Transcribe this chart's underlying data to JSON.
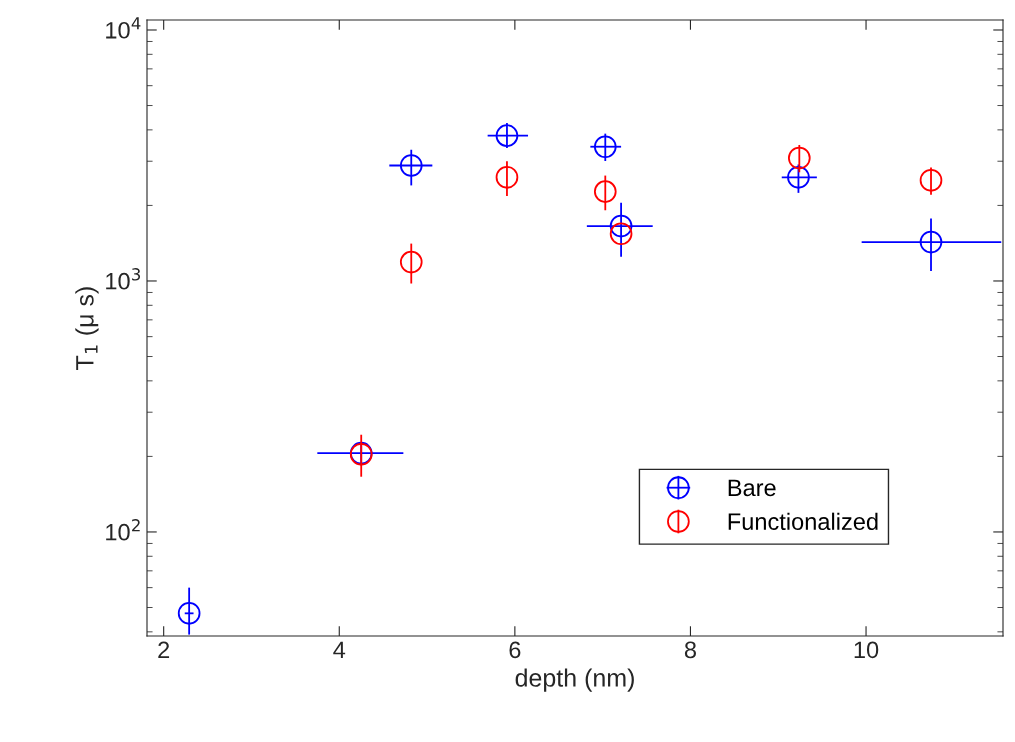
{
  "chart_data": {
    "type": "scatter",
    "xlabel": "depth (nm)",
    "ylabel": "T$_{1}$ (μ s)",
    "log": "y",
    "grid": false,
    "legend": "bottom right",
    "marker": "circle",
    "xlim": [
      1.81,
      11.56
    ],
    "xticks": [
      2,
      4,
      6,
      8,
      10
    ],
    "ylim": [
      38.5,
      10960
    ],
    "yticks": [
      {
        "value": 100,
        "label": "10$^{2}$"
      },
      {
        "value": 1000,
        "label": "10$^{3}$"
      },
      {
        "value": 10000,
        "label": "10$^{4}$"
      }
    ],
    "series": [
      {
        "name": "Bare",
        "color": "#0000ff",
        "x": [
          2.29,
          4.25,
          4.82,
          5.91,
          7.03,
          7.21,
          9.23,
          10.74
        ],
        "values": [
          47.4,
          206,
          2884,
          3794,
          3427,
          1655,
          2588,
          1429
        ],
        "errors": [
          [
            39,
            60
          ],
          [
            184,
            228
          ],
          [
            2403,
            3333
          ],
          [
            3388,
            4257
          ],
          [
            3006,
            3864
          ],
          [
            1250,
            2048
          ],
          [
            2244,
            2912
          ],
          [
            1097,
            1774
          ]
        ],
        "xerrors": [
          [
            2.24,
            2.34
          ],
          [
            3.75,
            4.73
          ],
          [
            4.57,
            5.06
          ],
          [
            5.69,
            6.15
          ],
          [
            6.86,
            7.21
          ],
          [
            6.82,
            7.57
          ],
          [
            9.04,
            9.44
          ],
          [
            9.95,
            11.54
          ]
        ]
      },
      {
        "name": "Functionalized",
        "color": "#ff0000",
        "x": [
          4.25,
          4.82,
          5.91,
          7.03,
          7.21,
          9.24,
          10.74
        ],
        "values": [
          204,
          1189,
          2588,
          2270,
          1542,
          3090,
          2518
        ],
        "errors": [
          [
            166,
            244
          ],
          [
            977,
            1409
          ],
          [
            2179,
            2998
          ],
          [
            1913,
            2630
          ],
          null,
          [
            2710,
            3483
          ],
          [
            2206,
            2833
          ]
        ]
      }
    ]
  }
}
